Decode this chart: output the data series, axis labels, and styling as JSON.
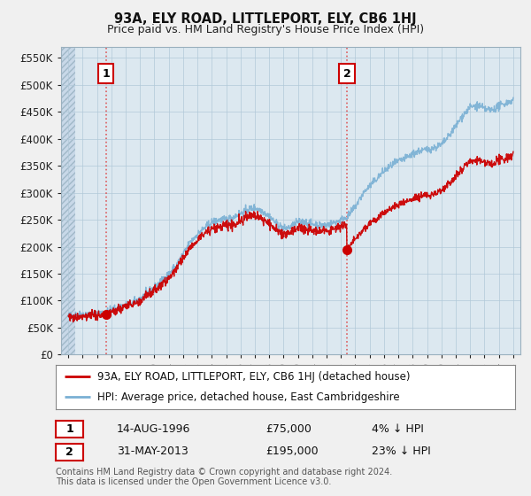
{
  "title": "93A, ELY ROAD, LITTLEPORT, ELY, CB6 1HJ",
  "subtitle": "Price paid vs. HM Land Registry's House Price Index (HPI)",
  "legend_entry1": "93A, ELY ROAD, LITTLEPORT, ELY, CB6 1HJ (detached house)",
  "legend_entry2": "HPI: Average price, detached house, East Cambridgeshire",
  "annotation1_date": "14-AUG-1996",
  "annotation1_price": "£75,000",
  "annotation1_hpi": "4% ↓ HPI",
  "annotation2_date": "31-MAY-2013",
  "annotation2_price": "£195,000",
  "annotation2_hpi": "23% ↓ HPI",
  "footer": "Contains HM Land Registry data © Crown copyright and database right 2024.\nThis data is licensed under the Open Government Licence v3.0.",
  "ylim": [
    0,
    570000
  ],
  "yticks": [
    0,
    50000,
    100000,
    150000,
    200000,
    250000,
    300000,
    350000,
    400000,
    450000,
    500000,
    550000
  ],
  "bg_color": "#f0f0f0",
  "plot_bg_color": "#dce8f0",
  "hatch_color": "#c8d8e8",
  "grid_color": "#b0c8d8",
  "sale1_x": 1996.62,
  "sale1_y": 75000,
  "sale2_x": 2013.41,
  "sale2_y": 195000,
  "red_line_color": "#cc0000",
  "blue_line_color": "#7ab0d4",
  "xmin": 1994.0,
  "xmax": 2025.0
}
